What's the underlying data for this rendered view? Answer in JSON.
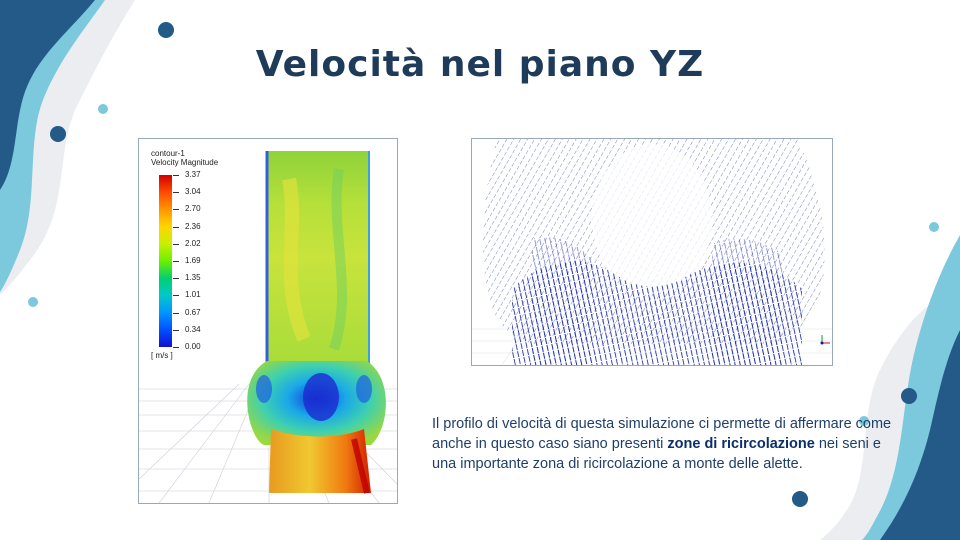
{
  "slide": {
    "title": "Velocità nel piano YZ"
  },
  "contour": {
    "name": "contour-1",
    "quantity": "Velocity Magnitude",
    "units": "[ m/s ]",
    "ticks": [
      "3.37",
      "3.04",
      "2.70",
      "2.36",
      "2.02",
      "1.69",
      "1.35",
      "1.01",
      "0.67",
      "0.34",
      "0.00"
    ]
  },
  "description": {
    "part1": "Il profilo di velocità di questa simulazione ci permette di affermare come anche in questo caso siano presenti ",
    "bold": "zone di ricircolazione",
    "part2": " nei seni e una importante zona di ricircolazione a monte delle alette."
  },
  "colors": {
    "title": "#1f3b5a",
    "deco_dark": "#235a87",
    "deco_light": "#7cc8dd",
    "deco_grey": "#ecedf0",
    "vector_blue": "#0a1aa0"
  }
}
